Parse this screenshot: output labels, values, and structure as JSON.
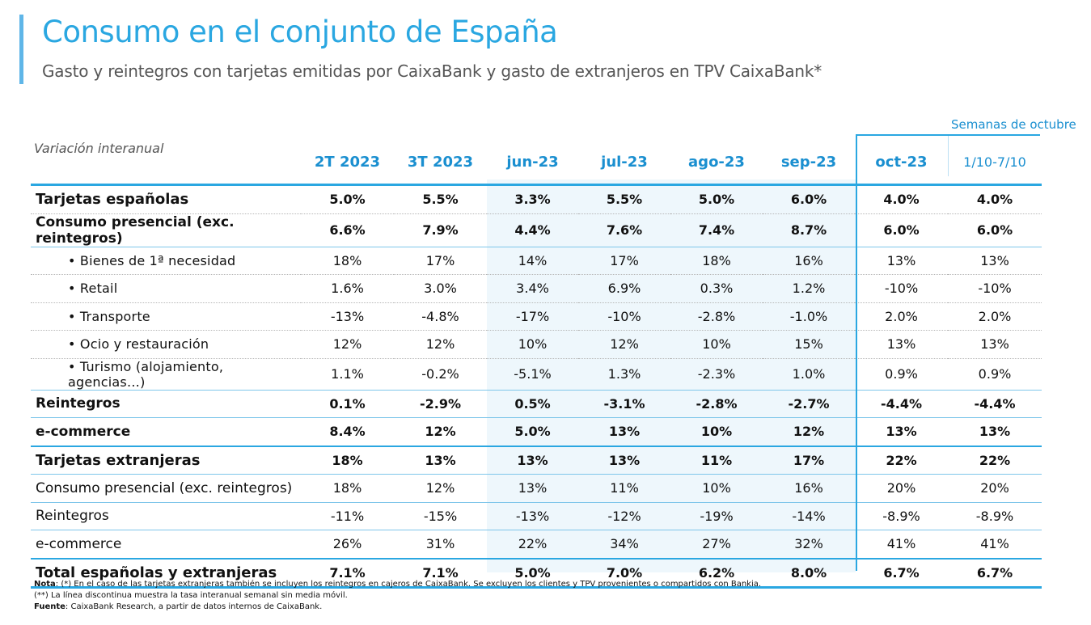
{
  "title": "Consumo en el conjunto de España",
  "subtitle": "Gasto y reintegros con tarjetas emitidas por CaixaBank y gasto de extranjeros en TPV CaixaBank*",
  "weeks_label": "Semanas de octubre",
  "colors": {
    "accent": "#2aa7e1",
    "header_text": "#1a8fd0",
    "shade": "#eef7fc"
  },
  "table": {
    "corner_label": "Variación interanual",
    "headers": [
      "2T 2023",
      "3T 2023",
      "jun-23",
      "jul-23",
      "ago-23",
      "sep-23",
      "oct-23",
      "1/10-7/10"
    ],
    "rows": [
      {
        "label": "Tarjetas españolas",
        "values": [
          "5.0%",
          "5.5%",
          "3.3%",
          "5.5%",
          "5.0%",
          "6.0%",
          "4.0%",
          "4.0%"
        ]
      },
      {
        "label": "Consumo presencial (exc. reintegros)",
        "values": [
          "6.6%",
          "7.9%",
          "4.4%",
          "7.6%",
          "7.4%",
          "8.7%",
          "6.0%",
          "6.0%"
        ]
      },
      {
        "label": "• Bienes de 1ª necesidad",
        "values": [
          "18%",
          "17%",
          "14%",
          "17%",
          "18%",
          "16%",
          "13%",
          "13%"
        ]
      },
      {
        "label": "• Retail",
        "values": [
          "1.6%",
          "3.0%",
          "3.4%",
          "6.9%",
          "0.3%",
          "1.2%",
          "-10%",
          "-10%"
        ]
      },
      {
        "label": "• Transporte",
        "values": [
          "-13%",
          "-4.8%",
          "-17%",
          "-10%",
          "-2.8%",
          "-1.0%",
          "2.0%",
          "2.0%"
        ]
      },
      {
        "label": "• Ocio y restauración",
        "values": [
          "12%",
          "12%",
          "10%",
          "12%",
          "10%",
          "15%",
          "13%",
          "13%"
        ]
      },
      {
        "label": "• Turismo (alojamiento, agencias…)",
        "values": [
          "1.1%",
          "-0.2%",
          "-5.1%",
          "1.3%",
          "-2.3%",
          "1.0%",
          "0.9%",
          "0.9%"
        ]
      },
      {
        "label": "Reintegros",
        "values": [
          "0.1%",
          "-2.9%",
          "0.5%",
          "-3.1%",
          "-2.8%",
          "-2.7%",
          "-4.4%",
          "-4.4%"
        ]
      },
      {
        "label": "e-commerce",
        "values": [
          "8.4%",
          "12%",
          "5.0%",
          "13%",
          "10%",
          "12%",
          "13%",
          "13%"
        ]
      },
      {
        "label": "Tarjetas extranjeras",
        "values": [
          "18%",
          "13%",
          "13%",
          "13%",
          "11%",
          "17%",
          "22%",
          "22%"
        ]
      },
      {
        "label": "Consumo presencial (exc. reintegros)",
        "values": [
          "18%",
          "12%",
          "13%",
          "11%",
          "10%",
          "16%",
          "20%",
          "20%"
        ]
      },
      {
        "label": "Reintegros",
        "values": [
          "-11%",
          "-15%",
          "-13%",
          "-12%",
          "-19%",
          "-14%",
          "-8.9%",
          "-8.9%"
        ]
      },
      {
        "label": "e-commerce",
        "values": [
          "26%",
          "31%",
          "22%",
          "34%",
          "27%",
          "32%",
          "41%",
          "41%"
        ]
      },
      {
        "label": "Total españolas y extranjeras",
        "values": [
          "7.1%",
          "7.1%",
          "5.0%",
          "7.0%",
          "6.2%",
          "8.0%",
          "6.7%",
          "6.7%"
        ]
      }
    ]
  },
  "notes": {
    "nota_label": "Nota",
    "nota_text": ": (*) En el caso de las tarjetas extranjeras también se incluyen los reintegros en cajeros de CaixaBank. Se excluyen los clientes y TPV provenientes o compartidos con Bankia.",
    "line2": "(**) La línea discontinua muestra la tasa interanual semanal sin media móvil.",
    "fuente_label": "Fuente",
    "fuente_text": ": CaixaBank Research, a partir de datos internos de CaixaBank."
  }
}
